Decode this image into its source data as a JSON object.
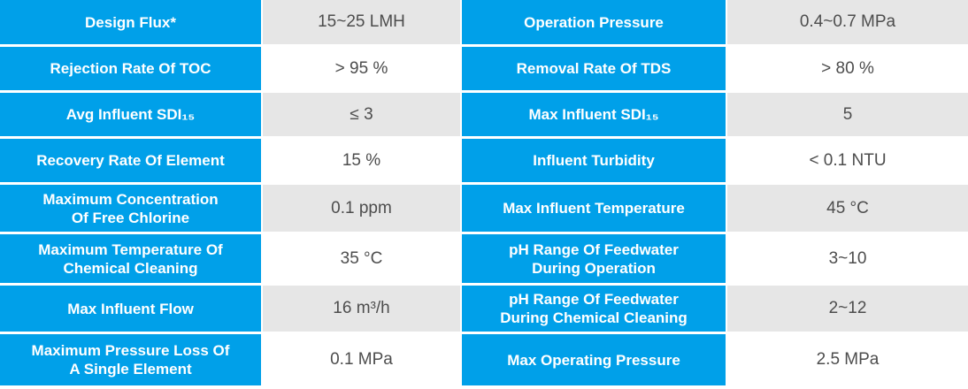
{
  "colors": {
    "label_cell_blue": "#00A0E9",
    "label_text_white": "#FFFFFF",
    "value_cell_gray": "#E6E6E6",
    "value_cell_white": "#FFFFFF",
    "value_text_gray": "#4D4D4D"
  },
  "table": {
    "rows": [
      {
        "left": {
          "label": "Design Flux*",
          "value": "15~25 LMH"
        },
        "right": {
          "label": "Operation Pressure",
          "value": "0.4~0.7 MPa"
        }
      },
      {
        "left": {
          "label": "Rejection Rate Of TOC",
          "value": "> 95 %"
        },
        "right": {
          "label": "Removal Rate Of TDS",
          "value": "> 80 %"
        }
      },
      {
        "left": {
          "label": "Avg Influent SDI₁₅",
          "value": "≤ 3"
        },
        "right": {
          "label": "Max Influent SDI₁₅",
          "value": "5"
        }
      },
      {
        "left": {
          "label": "Recovery Rate Of Element",
          "value": "15 %"
        },
        "right": {
          "label": "Influent Turbidity",
          "value": "< 0.1 NTU"
        }
      },
      {
        "left": {
          "label": "Maximum Concentration\nOf Free Chlorine",
          "value": "0.1 ppm"
        },
        "right": {
          "label": "Max Influent Temperature",
          "value": "45 °C"
        }
      },
      {
        "left": {
          "label": "Maximum Temperature Of\nChemical Cleaning",
          "value": "35 °C"
        },
        "right": {
          "label": "pH Range Of Feedwater\nDuring Operation",
          "value": "3~10"
        }
      },
      {
        "left": {
          "label": "Max Influent Flow",
          "value": "16 m³/h"
        },
        "right": {
          "label": "pH Range Of Feedwater\nDuring Chemical Cleaning",
          "value": "2~12"
        }
      },
      {
        "left": {
          "label": "Maximum Pressure Loss Of\nA Single Element",
          "value": "0.1 MPa"
        },
        "right": {
          "label": "Max Operating Pressure",
          "value": "2.5 MPa"
        }
      }
    ]
  },
  "chart_data": {
    "type": "table",
    "columns": [
      "Parameter",
      "Value",
      "Parameter",
      "Value"
    ],
    "rows": [
      [
        "Design Flux*",
        "15~25 LMH",
        "Operation Pressure",
        "0.4~0.7 MPa"
      ],
      [
        "Rejection Rate Of TOC",
        "> 95 %",
        "Removal Rate Of TDS",
        "> 80 %"
      ],
      [
        "Avg Influent SDI₁₅",
        "≤ 3",
        "Max Influent SDI₁₅",
        "5"
      ],
      [
        "Recovery Rate Of Element",
        "15 %",
        "Influent Turbidity",
        "< 0.1 NTU"
      ],
      [
        "Maximum Concentration Of Free Chlorine",
        "0.1 ppm",
        "Max Influent Temperature",
        "45 °C"
      ],
      [
        "Maximum Temperature Of Chemical Cleaning",
        "35 °C",
        "pH Range Of Feedwater During Operation",
        "3~10"
      ],
      [
        "Max Influent Flow",
        "16 m³/h",
        "pH Range Of Feedwater During Chemical Cleaning",
        "2~12"
      ],
      [
        "Maximum Pressure Loss Of A Single Element",
        "0.1 MPa",
        "Max Operating Pressure",
        "2.5 MPa"
      ]
    ]
  }
}
